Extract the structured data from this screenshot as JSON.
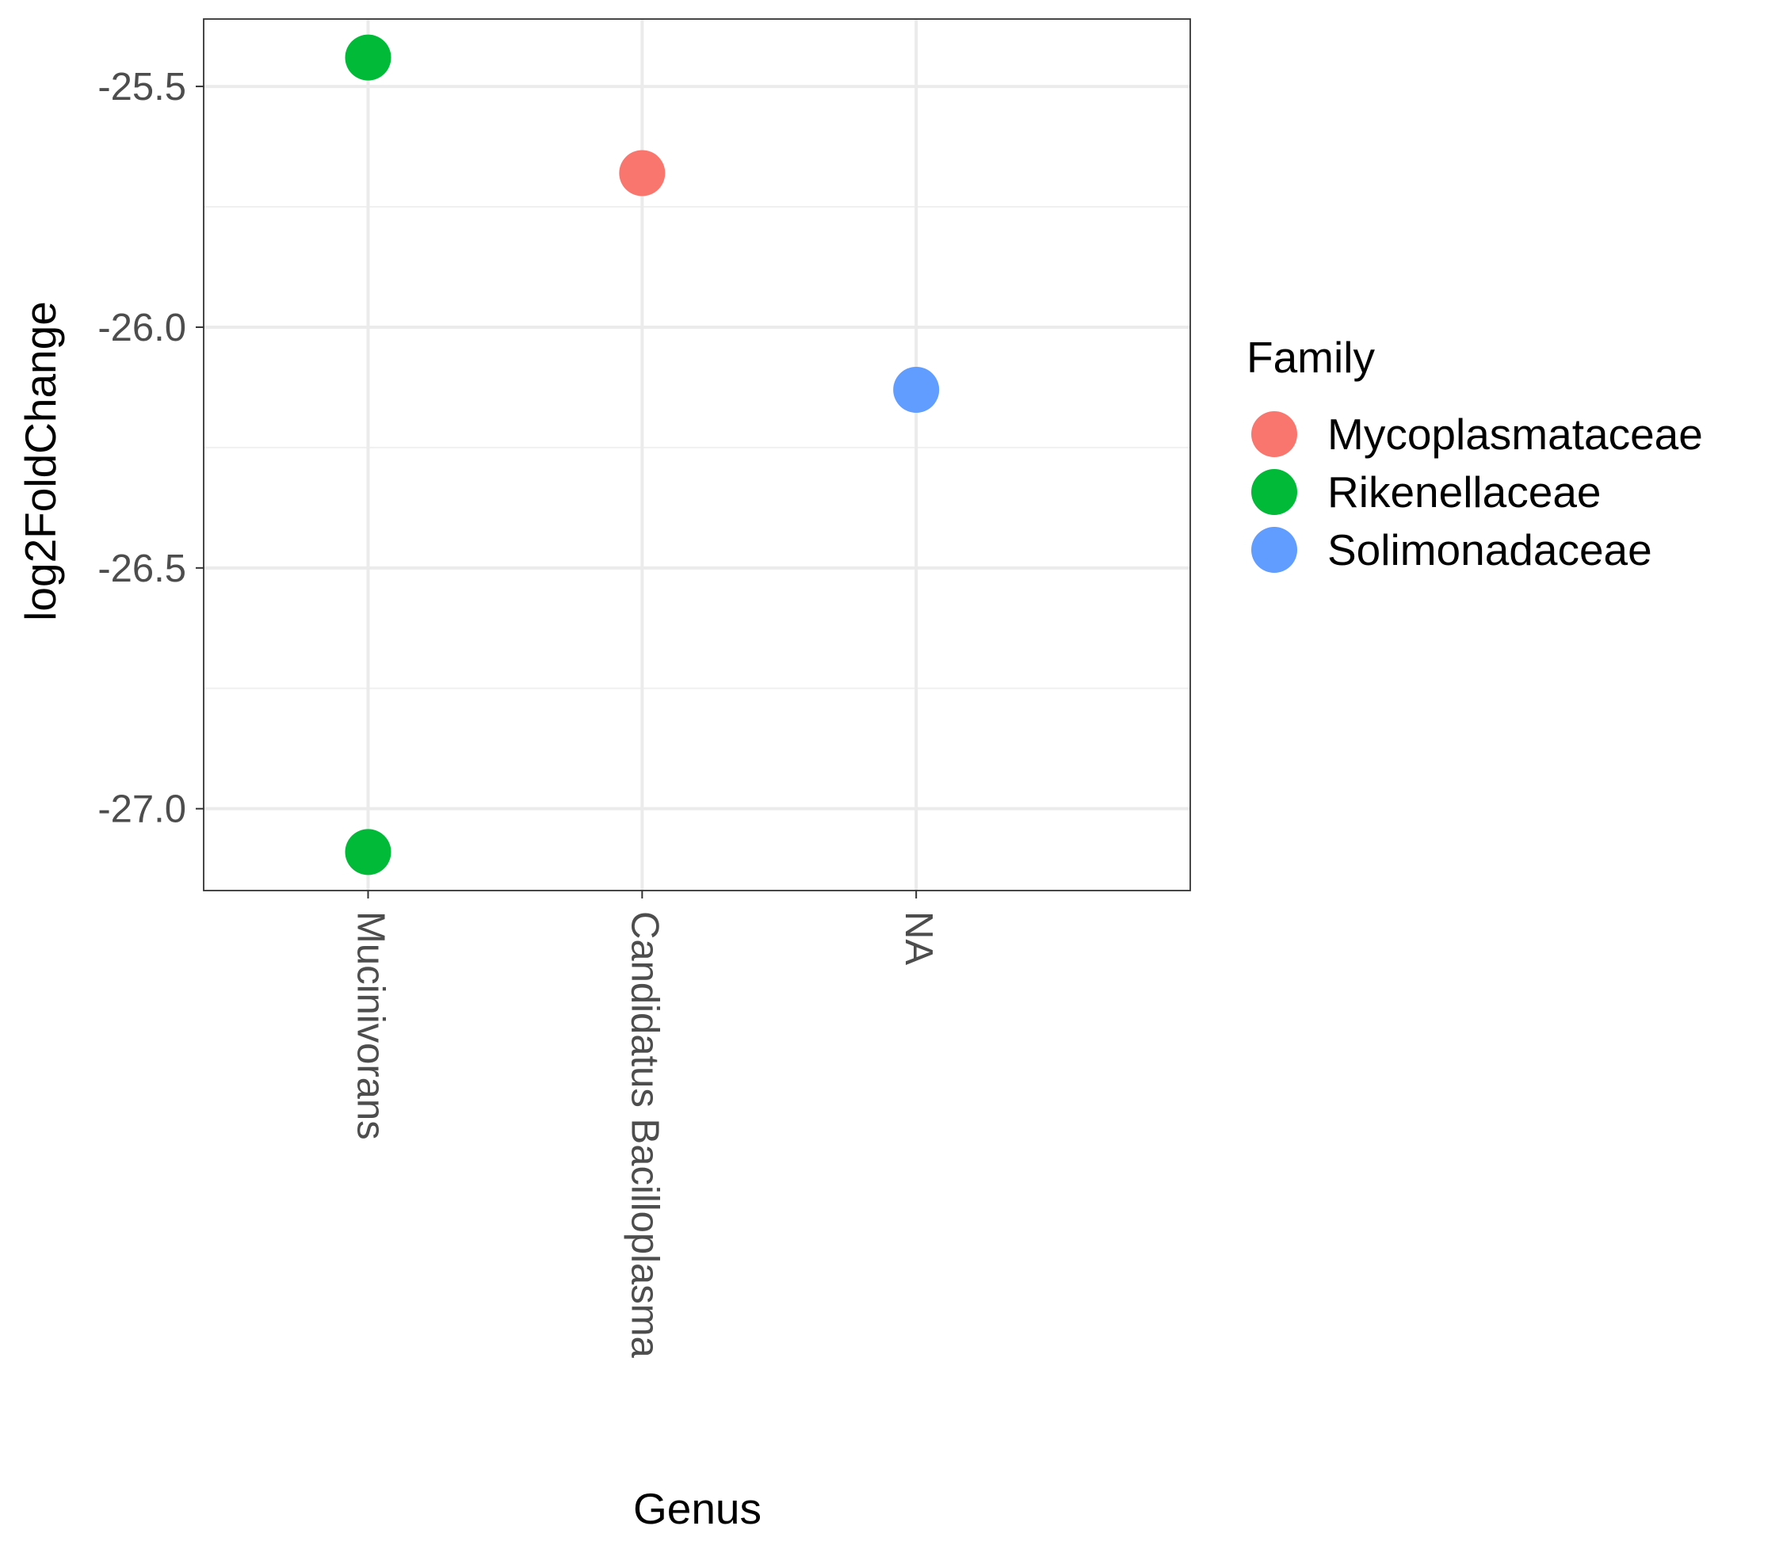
{
  "chart_data": {
    "type": "scatter",
    "title": "",
    "xlabel": "Genus",
    "ylabel": "log2FoldChange",
    "categories": [
      "Mucinivorans",
      "Candidatus Bacilloplasma",
      "NA"
    ],
    "yticks": [
      "-27.0",
      "-26.5",
      "-26.0",
      "-25.5"
    ],
    "ylim": [
      -27.17,
      -25.36
    ],
    "grid": true,
    "legend": {
      "title": "Family",
      "placement": "right",
      "entries": [
        {
          "name": "Mycoplasmataceae",
          "color": "#F8766D"
        },
        {
          "name": "Rikenellaceae",
          "color": "#00BA38"
        },
        {
          "name": "Solimonadaceae",
          "color": "#619CFF"
        }
      ]
    },
    "points": [
      {
        "x": "Mucinivorans",
        "y": -25.44,
        "family": "Rikenellaceae"
      },
      {
        "x": "Mucinivorans",
        "y": -27.09,
        "family": "Rikenellaceae"
      },
      {
        "x": "Candidatus Bacilloplasma",
        "y": -25.68,
        "family": "Mycoplasmataceae"
      },
      {
        "x": "NA",
        "y": -26.13,
        "family": "Solimonadaceae"
      }
    ]
  }
}
